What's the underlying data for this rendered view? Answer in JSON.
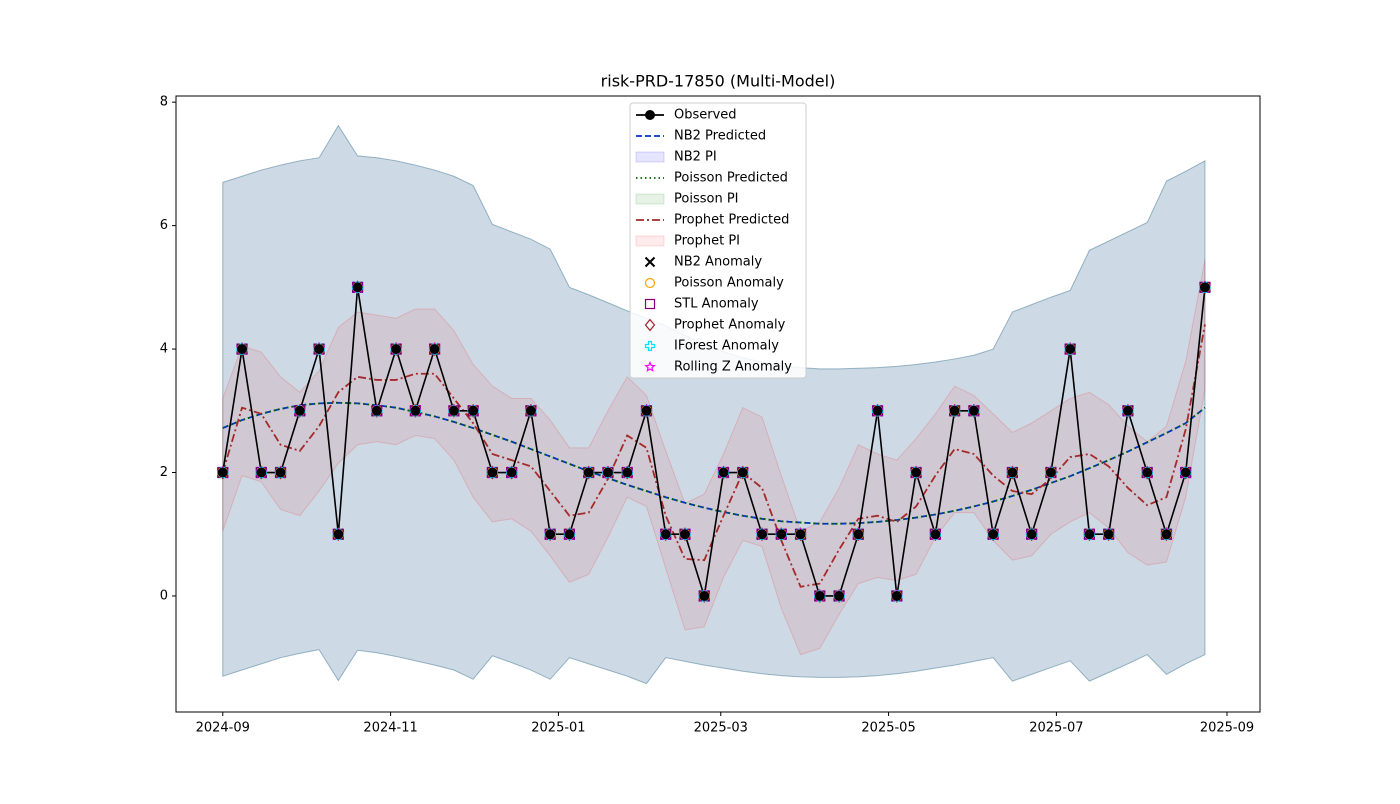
{
  "chart_data": {
    "type": "line",
    "title": "risk-PRD-17850 (Multi-Model)",
    "x": [
      "2024-09-01",
      "2024-09-08",
      "2024-09-15",
      "2024-09-22",
      "2024-09-29",
      "2024-10-06",
      "2024-10-13",
      "2024-10-20",
      "2024-10-27",
      "2024-11-03",
      "2024-11-10",
      "2024-11-17",
      "2024-11-24",
      "2024-12-01",
      "2024-12-08",
      "2024-12-15",
      "2024-12-22",
      "2024-12-29",
      "2025-01-05",
      "2025-01-12",
      "2025-01-19",
      "2025-01-26",
      "2025-02-02",
      "2025-02-09",
      "2025-02-16",
      "2025-02-23",
      "2025-03-02",
      "2025-03-09",
      "2025-03-16",
      "2025-03-23",
      "2025-03-30",
      "2025-04-06",
      "2025-04-13",
      "2025-04-20",
      "2025-04-27",
      "2025-05-04",
      "2025-05-11",
      "2025-05-18",
      "2025-05-25",
      "2025-06-01",
      "2025-06-08",
      "2025-06-15",
      "2025-06-22",
      "2025-06-29",
      "2025-07-06",
      "2025-07-13",
      "2025-07-20",
      "2025-07-27",
      "2025-08-03",
      "2025-08-10",
      "2025-08-17",
      "2025-08-24"
    ],
    "xlim": [
      "2024-08-15",
      "2025-09-13"
    ],
    "xticks": [
      {
        "value": "2024-09-01",
        "label": "2024-09"
      },
      {
        "value": "2024-11-01",
        "label": "2024-11"
      },
      {
        "value": "2025-01-01",
        "label": "2025-01"
      },
      {
        "value": "2025-03-01",
        "label": "2025-03"
      },
      {
        "value": "2025-05-01",
        "label": "2025-05"
      },
      {
        "value": "2025-07-01",
        "label": "2025-07"
      },
      {
        "value": "2025-09-01",
        "label": "2025-09"
      }
    ],
    "ylim": [
      -1.88,
      8.1
    ],
    "yticks": [
      0,
      2,
      4,
      6,
      8
    ],
    "legend": "upper center",
    "series": [
      {
        "name": "Observed",
        "kind": "line",
        "color": "#000000",
        "dash": "solid",
        "marker": "circle",
        "values": [
          2,
          4,
          2,
          2,
          3,
          4,
          1,
          5,
          3,
          4,
          3,
          4,
          3,
          3,
          2,
          2,
          3,
          1,
          1,
          2,
          2,
          2,
          3,
          1,
          1,
          0,
          2,
          2,
          1,
          1,
          1,
          0,
          0,
          1,
          3,
          0,
          2,
          1,
          3,
          3,
          1,
          2,
          1,
          2,
          4,
          1,
          1,
          3,
          2,
          1,
          2,
          5
        ]
      },
      {
        "name": "NB2 Predicted",
        "kind": "line",
        "color": "#0033cc",
        "dash": "dashed",
        "values": [
          2.72,
          2.85,
          2.95,
          3.03,
          3.09,
          3.12,
          3.13,
          3.12,
          3.09,
          3.05,
          2.98,
          2.91,
          2.82,
          2.72,
          2.61,
          2.5,
          2.38,
          2.26,
          2.14,
          2.02,
          1.91,
          1.8,
          1.7,
          1.6,
          1.51,
          1.43,
          1.36,
          1.3,
          1.25,
          1.21,
          1.19,
          1.17,
          1.17,
          1.18,
          1.2,
          1.23,
          1.27,
          1.32,
          1.38,
          1.45,
          1.53,
          1.62,
          1.72,
          1.83,
          1.94,
          2.07,
          2.2,
          2.34,
          2.49,
          2.64,
          2.8,
          3.05
        ]
      },
      {
        "name": "NB2 PI",
        "kind": "band",
        "color": "#0000ff",
        "opacity": 0.1,
        "lower": [
          -1.3,
          -1.2,
          -1.1,
          -1.0,
          -0.93,
          -0.87,
          -1.37,
          -0.88,
          -0.92,
          -0.98,
          -1.05,
          -1.12,
          -1.2,
          -1.35,
          -0.97,
          -1.08,
          -1.2,
          -1.35,
          -1.0,
          -1.1,
          -1.2,
          -1.3,
          -1.42,
          -1.0,
          -1.06,
          -1.12,
          -1.17,
          -1.22,
          -1.26,
          -1.29,
          -1.31,
          -1.32,
          -1.32,
          -1.31,
          -1.29,
          -1.26,
          -1.22,
          -1.17,
          -1.12,
          -1.06,
          -1.0,
          -1.38,
          -1.27,
          -1.16,
          -1.05,
          -1.38,
          -1.24,
          -1.1,
          -0.95,
          -1.27,
          -1.1,
          -0.95
        ],
        "upper": [
          6.7,
          6.8,
          6.9,
          6.98,
          7.05,
          7.1,
          7.62,
          7.13,
          7.1,
          7.05,
          6.98,
          6.9,
          6.8,
          6.65,
          6.02,
          5.9,
          5.78,
          5.62,
          5.0,
          4.88,
          4.75,
          4.62,
          4.5,
          4.38,
          4.22,
          4.08,
          3.96,
          3.86,
          3.79,
          3.73,
          3.7,
          3.68,
          3.68,
          3.69,
          3.7,
          3.72,
          3.75,
          3.79,
          3.84,
          3.9,
          4.0,
          4.6,
          4.72,
          4.84,
          4.95,
          5.6,
          5.75,
          5.9,
          6.05,
          6.72,
          6.88,
          7.05
        ]
      },
      {
        "name": "Poisson Predicted",
        "kind": "line",
        "color": "#006400",
        "dash": "dotted",
        "values": [
          2.72,
          2.85,
          2.95,
          3.03,
          3.09,
          3.12,
          3.13,
          3.12,
          3.09,
          3.05,
          2.98,
          2.91,
          2.82,
          2.72,
          2.61,
          2.5,
          2.38,
          2.26,
          2.14,
          2.02,
          1.91,
          1.8,
          1.7,
          1.6,
          1.51,
          1.43,
          1.36,
          1.3,
          1.25,
          1.21,
          1.19,
          1.17,
          1.17,
          1.18,
          1.2,
          1.23,
          1.27,
          1.32,
          1.38,
          1.45,
          1.53,
          1.62,
          1.72,
          1.83,
          1.94,
          2.07,
          2.2,
          2.34,
          2.49,
          2.64,
          2.8,
          3.05
        ]
      },
      {
        "name": "Poisson PI",
        "kind": "band",
        "color": "#008000",
        "opacity": 0.1,
        "lower": [
          -1.3,
          -1.2,
          -1.1,
          -1.0,
          -0.93,
          -0.87,
          -1.37,
          -0.88,
          -0.92,
          -0.98,
          -1.05,
          -1.12,
          -1.2,
          -1.35,
          -0.97,
          -1.08,
          -1.2,
          -1.35,
          -1.0,
          -1.1,
          -1.2,
          -1.3,
          -1.42,
          -1.0,
          -1.06,
          -1.12,
          -1.17,
          -1.22,
          -1.26,
          -1.29,
          -1.31,
          -1.32,
          -1.32,
          -1.31,
          -1.29,
          -1.26,
          -1.22,
          -1.17,
          -1.12,
          -1.06,
          -1.0,
          -1.38,
          -1.27,
          -1.16,
          -1.05,
          -1.38,
          -1.24,
          -1.1,
          -0.95,
          -1.27,
          -1.1,
          -0.95
        ],
        "upper": [
          6.7,
          6.8,
          6.9,
          6.98,
          7.05,
          7.1,
          7.62,
          7.13,
          7.1,
          7.05,
          6.98,
          6.9,
          6.8,
          6.65,
          6.02,
          5.9,
          5.78,
          5.62,
          5.0,
          4.88,
          4.75,
          4.62,
          4.5,
          4.38,
          4.22,
          4.08,
          3.96,
          3.86,
          3.79,
          3.73,
          3.7,
          3.68,
          3.68,
          3.69,
          3.7,
          3.72,
          3.75,
          3.79,
          3.84,
          3.9,
          4.0,
          4.6,
          4.72,
          4.84,
          4.95,
          5.6,
          5.75,
          5.9,
          6.05,
          6.72,
          6.88,
          7.05
        ]
      },
      {
        "name": "Prophet Predicted",
        "kind": "line",
        "color": "#a52a2a",
        "dash": "dashdot",
        "values": [
          2.0,
          3.05,
          2.95,
          2.45,
          2.35,
          2.75,
          3.3,
          3.55,
          3.5,
          3.5,
          3.6,
          3.6,
          3.2,
          2.8,
          2.3,
          2.2,
          2.1,
          1.7,
          1.3,
          1.35,
          1.9,
          2.6,
          2.4,
          1.3,
          0.6,
          0.58,
          1.3,
          2.0,
          1.75,
          0.9,
          0.15,
          0.2,
          0.75,
          1.25,
          1.3,
          1.2,
          1.45,
          1.95,
          2.38,
          2.3,
          1.95,
          1.7,
          1.65,
          1.9,
          2.25,
          2.3,
          2.1,
          1.75,
          1.47,
          1.6,
          2.7,
          4.4
        ]
      },
      {
        "name": "Prophet PI",
        "kind": "band",
        "color": "#ff0000",
        "opacity": 0.08,
        "lower": [
          1.05,
          1.95,
          1.85,
          1.4,
          1.3,
          1.7,
          2.15,
          2.45,
          2.5,
          2.45,
          2.6,
          2.55,
          2.2,
          1.6,
          1.2,
          1.25,
          1.05,
          0.65,
          0.22,
          0.35,
          0.95,
          1.6,
          1.45,
          0.45,
          -0.55,
          -0.5,
          0.3,
          0.9,
          0.8,
          -0.2,
          -0.95,
          -0.85,
          -0.3,
          0.2,
          0.3,
          0.25,
          0.35,
          0.95,
          1.35,
          1.35,
          0.9,
          0.58,
          0.65,
          1.0,
          1.2,
          1.35,
          1.1,
          0.7,
          0.5,
          0.55,
          1.6,
          3.35
        ],
        "upper": [
          3.2,
          4.05,
          3.95,
          3.55,
          3.3,
          3.65,
          4.35,
          4.6,
          4.55,
          4.5,
          4.65,
          4.65,
          4.3,
          3.75,
          3.4,
          3.2,
          3.2,
          2.85,
          2.4,
          2.4,
          3.0,
          3.55,
          3.25,
          2.35,
          1.5,
          1.65,
          2.3,
          3.05,
          2.9,
          1.95,
          1.05,
          1.2,
          1.75,
          2.45,
          2.3,
          2.2,
          2.55,
          2.95,
          3.4,
          3.25,
          2.95,
          2.65,
          2.8,
          3.0,
          3.2,
          3.3,
          3.1,
          2.75,
          2.5,
          2.75,
          3.8,
          5.45
        ]
      },
      {
        "name": "NB2 Anomaly",
        "kind": "scatter",
        "color": "#000000",
        "marker": "x",
        "values": [
          2,
          4,
          2,
          2,
          3,
          4,
          1,
          5,
          3,
          4,
          3,
          4,
          3,
          3,
          2,
          2,
          3,
          1,
          1,
          2,
          2,
          2,
          3,
          1,
          1,
          0,
          2,
          2,
          1,
          1,
          1,
          0,
          0,
          1,
          3,
          0,
          2,
          1,
          3,
          3,
          1,
          2,
          1,
          2,
          4,
          1,
          1,
          3,
          2,
          1,
          2,
          5
        ]
      },
      {
        "name": "Poisson Anomaly",
        "kind": "scatter",
        "color": "#ffa500",
        "marker": "circle-open",
        "values": [
          2,
          4,
          2,
          2,
          3,
          4,
          1,
          5,
          3,
          4,
          3,
          4,
          3,
          3,
          2,
          2,
          3,
          1,
          1,
          2,
          2,
          2,
          3,
          1,
          1,
          0,
          2,
          2,
          1,
          1,
          1,
          0,
          0,
          1,
          3,
          0,
          2,
          1,
          3,
          3,
          1,
          2,
          1,
          2,
          4,
          1,
          1,
          3,
          2,
          1,
          2,
          5
        ]
      },
      {
        "name": "STL Anomaly",
        "kind": "scatter",
        "color": "#800080",
        "marker": "square",
        "values": [
          2,
          4,
          2,
          2,
          3,
          4,
          1,
          5,
          3,
          4,
          3,
          4,
          3,
          3,
          2,
          2,
          3,
          1,
          1,
          2,
          2,
          2,
          3,
          1,
          1,
          0,
          2,
          2,
          1,
          1,
          1,
          0,
          0,
          1,
          3,
          0,
          2,
          1,
          3,
          3,
          1,
          2,
          1,
          2,
          4,
          1,
          1,
          3,
          2,
          1,
          2,
          5
        ]
      },
      {
        "name": "Prophet Anomaly",
        "kind": "scatter",
        "color": "#a0222c",
        "marker": "diamond",
        "values": [
          2,
          4,
          2,
          2,
          3,
          4,
          1,
          5,
          3,
          4,
          3,
          4,
          3,
          3,
          2,
          2,
          3,
          1,
          1,
          2,
          2,
          2,
          3,
          1,
          1,
          0,
          2,
          2,
          1,
          1,
          1,
          0,
          0,
          1,
          3,
          0,
          2,
          1,
          3,
          3,
          1,
          2,
          1,
          2,
          4,
          1,
          1,
          3,
          2,
          1,
          2,
          5
        ]
      },
      {
        "name": "IForest Anomaly",
        "kind": "scatter",
        "color": "#00e5ff",
        "marker": "plus",
        "values": [
          2,
          4,
          2,
          2,
          3,
          4,
          1,
          5,
          3,
          4,
          3,
          4,
          3,
          3,
          2,
          2,
          3,
          1,
          1,
          2,
          2,
          2,
          3,
          1,
          1,
          0,
          2,
          2,
          1,
          1,
          1,
          0,
          0,
          1,
          3,
          0,
          2,
          1,
          3,
          3,
          1,
          2,
          1,
          2,
          4,
          1,
          1,
          3,
          2,
          1,
          2,
          5
        ]
      },
      {
        "name": "Rolling Z Anomaly",
        "kind": "scatter",
        "color": "#ff00ff",
        "marker": "star",
        "values": [
          2,
          4,
          2,
          2,
          3,
          4,
          1,
          5,
          3,
          4,
          3,
          4,
          3,
          3,
          2,
          2,
          3,
          1,
          1,
          2,
          2,
          2,
          3,
          1,
          1,
          0,
          2,
          2,
          1,
          1,
          1,
          0,
          0,
          1,
          3,
          0,
          2,
          1,
          3,
          3,
          1,
          2,
          1,
          2,
          4,
          1,
          1,
          3,
          2,
          1,
          2,
          5
        ]
      }
    ]
  }
}
